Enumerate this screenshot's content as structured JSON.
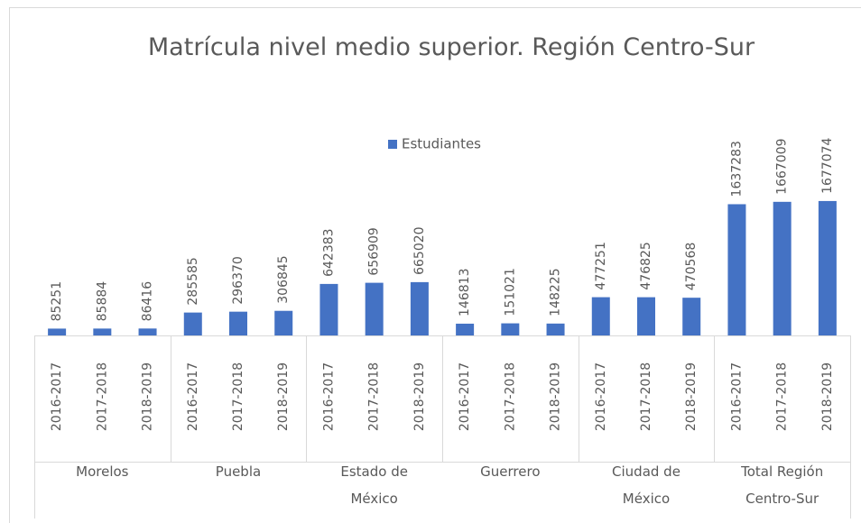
{
  "chart_data": {
    "type": "bar",
    "title": "Matrícula nivel medio superior. Región Centro-Sur",
    "groups": [
      "Morelos",
      "Puebla",
      "Estado de México",
      "Guerrero",
      "Ciudad de México",
      "Total Región Centro-Sur"
    ],
    "categories": [
      "2016-2017",
      "2017-2018",
      "2018-2019",
      "2016-2017",
      "2017-2018",
      "2018-2019",
      "2016-2017",
      "2017-2018",
      "2018-2019",
      "2016-2017",
      "2017-2018",
      "2018-2019",
      "2016-2017",
      "2017-2018",
      "2018-2019",
      "2016-2017",
      "2017-2018",
      "2018-2019"
    ],
    "series": [
      {
        "name": "Estudiantes",
        "color": "#4472c4",
        "values": [
          85251,
          85884,
          86416,
          285585,
          296370,
          306845,
          642383,
          656909,
          665020,
          146813,
          151021,
          148225,
          477251,
          476825,
          470568,
          1637283,
          1667009,
          1677074
        ]
      }
    ],
    "ylim": [
      0,
      1800000
    ],
    "legend": "top"
  }
}
